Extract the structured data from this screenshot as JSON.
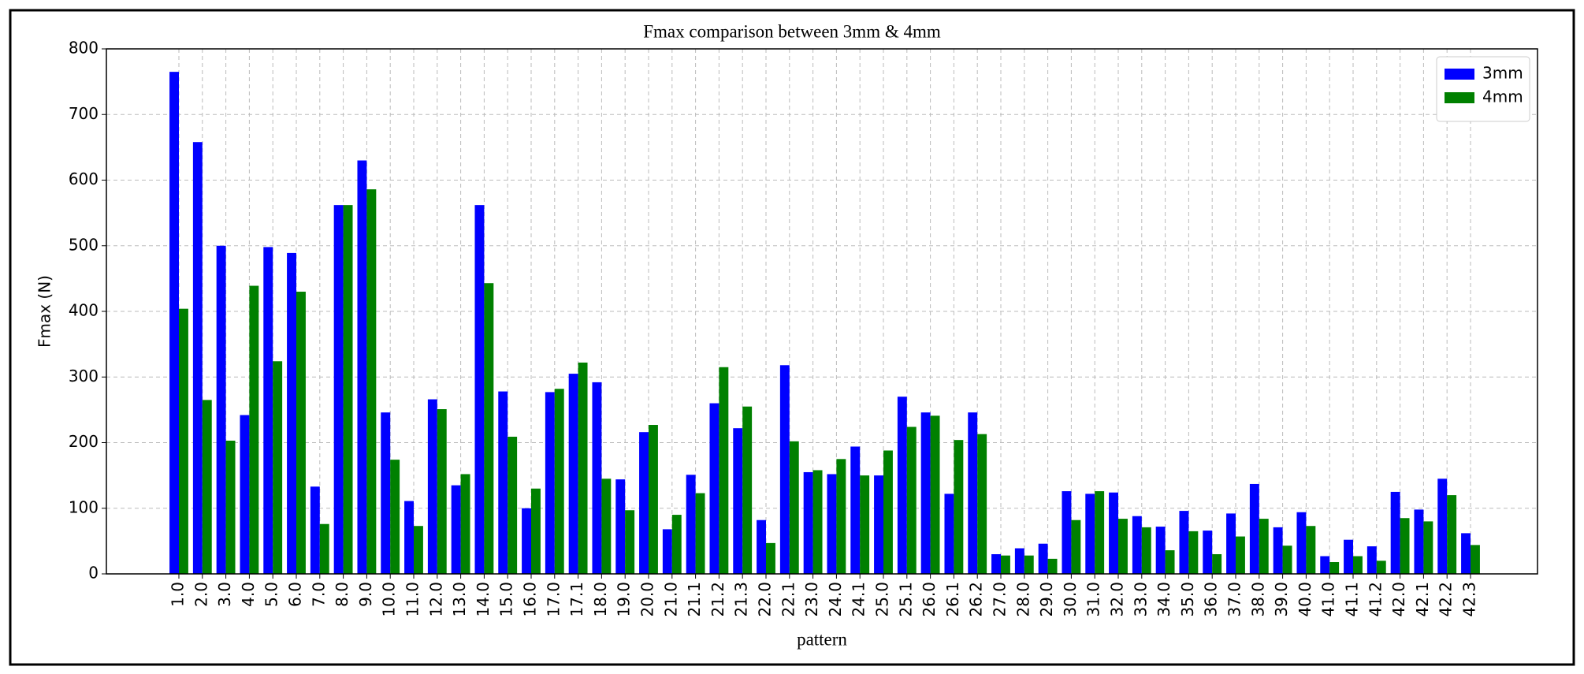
{
  "chart_data": {
    "type": "bar",
    "title": "Fmax comparison between 3mm & 4mm",
    "x_label": "pattern",
    "y_label": "Fmax (N)",
    "categories": [
      "1.0",
      "2.0",
      "3.0",
      "4.0",
      "5.0",
      "6.0",
      "7.0",
      "8.0",
      "9.0",
      "10.0",
      "11.0",
      "12.0",
      "13.0",
      "14.0",
      "15.0",
      "16.0",
      "17.0",
      "17.1",
      "18.0",
      "19.0",
      "20.0",
      "21.0",
      "21.1",
      "21.2",
      "21.3",
      "22.0",
      "22.1",
      "23.0",
      "24.0",
      "24.1",
      "25.0",
      "25.1",
      "26.0",
      "26.1",
      "26.2",
      "27.0",
      "28.0",
      "29.0",
      "30.0",
      "31.0",
      "32.0",
      "33.0",
      "34.0",
      "35.0",
      "36.0",
      "37.0",
      "38.0",
      "39.0",
      "40.0",
      "41.0",
      "41.1",
      "41.2",
      "42.0",
      "42.1",
      "42.2",
      "42.3"
    ],
    "series": [
      {
        "name": "3mm",
        "color": "#0000ff",
        "values": [
          765,
          658,
          500,
          242,
          498,
          489,
          133,
          562,
          630,
          246,
          111,
          266,
          135,
          562,
          278,
          100,
          277,
          305,
          292,
          144,
          216,
          68,
          151,
          260,
          222,
          82,
          318,
          155,
          152,
          194,
          150,
          270,
          246,
          122,
          246,
          30,
          39,
          46,
          126,
          122,
          124,
          88,
          72,
          96,
          66,
          92,
          137,
          71,
          94,
          27,
          52,
          42,
          125,
          98,
          145,
          62
        ]
      },
      {
        "name": "4mm",
        "color": "#008000",
        "values": [
          404,
          265,
          203,
          439,
          324,
          430,
          76,
          562,
          586,
          174,
          73,
          251,
          152,
          443,
          209,
          130,
          282,
          322,
          145,
          97,
          227,
          90,
          123,
          315,
          255,
          47,
          202,
          158,
          175,
          150,
          188,
          224,
          241,
          204,
          213,
          28,
          28,
          23,
          82,
          126,
          84,
          71,
          36,
          65,
          30,
          57,
          84,
          43,
          73,
          18,
          27,
          20,
          85,
          80,
          120,
          44
        ]
      }
    ],
    "ylim": [
      0,
      800
    ],
    "yticks": [
      0,
      100,
      200,
      300,
      400,
      500,
      600,
      700,
      800
    ],
    "grid": true,
    "legend": "upper right"
  }
}
